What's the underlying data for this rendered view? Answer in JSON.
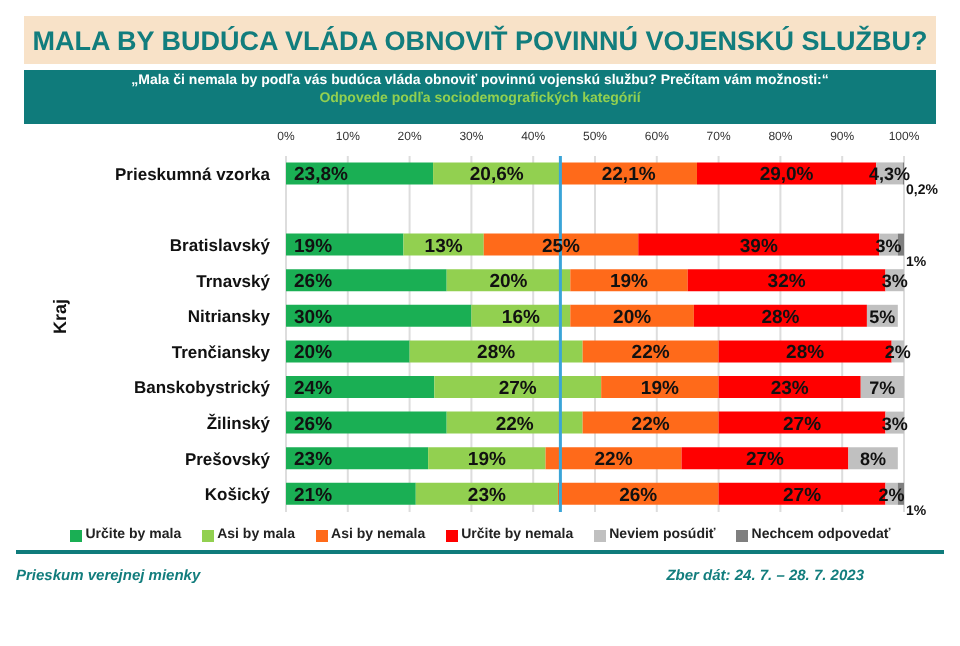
{
  "chart_data": {
    "type": "bar",
    "orientation": "horizontal",
    "stacked": true,
    "title": "MALA BY BUDÚCA VLÁDA OBNOVIŤ POVINNÚ VOJENSKÚ SLUŽBU?",
    "subtitle": "„Mala či nemala by podľa vás budúca vláda obnoviť povinnú vojenskú službu? Prečítam vám možnosti:“",
    "annotations": [
      "Odpovede podľa sociodemografických kategórií",
      "Prieskum verejnej mienky",
      "Zber dát: 24. 7. – 28. 7. 2023"
    ],
    "ylabel": "Kraj",
    "categories": [
      "Prieskumná vzorka",
      null,
      "Bratislavský",
      "Trnavský",
      "Nitriansky",
      "Trenčiansky",
      "Banskobystrický",
      "Žilinský",
      "Prešovský",
      "Košický"
    ],
    "series": [
      {
        "name": "Určite by mala",
        "color": "#1aaf54",
        "values": [
          23.8,
          null,
          19,
          26,
          30,
          20,
          24,
          26,
          23,
          21
        ],
        "value_labels": [
          "23,8%",
          null,
          "19%",
          "26%",
          "30%",
          "20%",
          "24%",
          "26%",
          "23%",
          "21%"
        ]
      },
      {
        "name": "Asi by mala",
        "color": "#92d050",
        "values": [
          20.6,
          null,
          13,
          20,
          16,
          28,
          27,
          22,
          19,
          23
        ],
        "value_labels": [
          "20,6%",
          null,
          "13%",
          "20%",
          "16%",
          "28%",
          "27%",
          "22%",
          "19%",
          "23%"
        ]
      },
      {
        "name": "Asi by nemala",
        "color": "#ff6a1a",
        "values": [
          22.1,
          null,
          25,
          19,
          20,
          22,
          19,
          22,
          22,
          26
        ],
        "value_labels": [
          "22,1%",
          null,
          "25%",
          "19%",
          "20%",
          "22%",
          "19%",
          "22%",
          "22%",
          "26%"
        ]
      },
      {
        "name": "Určite by nemala",
        "color": "#ff0000",
        "values": [
          29.0,
          null,
          39,
          32,
          28,
          28,
          23,
          27,
          27,
          27
        ],
        "value_labels": [
          "29,0%",
          null,
          "39%",
          "32%",
          "28%",
          "28%",
          "23%",
          "27%",
          "27%",
          "27%"
        ]
      },
      {
        "name": "Neviem posúdiť",
        "color": "#c0c0c0",
        "values": [
          4.3,
          null,
          3,
          3,
          5,
          2,
          7,
          3,
          8,
          2
        ],
        "value_labels": [
          "4,3%",
          null,
          "3%",
          "3%",
          "5%",
          "2%",
          "7%",
          "3%",
          "8%",
          "2%"
        ]
      },
      {
        "name": "Nechcem odpovedať",
        "color": "#7f7f7f",
        "values": [
          0.2,
          null,
          1,
          null,
          null,
          null,
          null,
          null,
          null,
          1
        ],
        "value_labels": [
          "0,2%",
          null,
          "1%",
          null,
          null,
          null,
          null,
          null,
          null,
          "1%"
        ]
      }
    ],
    "xlim": [
      0,
      100
    ],
    "xticks": [
      {
        "value": 0,
        "label": "0%"
      },
      {
        "value": 10,
        "label": "10%"
      },
      {
        "value": 20,
        "label": "20%"
      },
      {
        "value": 30,
        "label": "30%"
      },
      {
        "value": 40,
        "label": "40%"
      },
      {
        "value": 50,
        "label": "50%"
      },
      {
        "value": 60,
        "label": "60%"
      },
      {
        "value": 70,
        "label": "70%"
      },
      {
        "value": 80,
        "label": "80%"
      },
      {
        "value": 90,
        "label": "90%"
      },
      {
        "value": 100,
        "label": "100%"
      }
    ],
    "ref_lines": [
      {
        "axis": "x",
        "value": 44.4,
        "color": "#3aa5d8"
      }
    ],
    "grid": "x",
    "legend": "bottom"
  }
}
